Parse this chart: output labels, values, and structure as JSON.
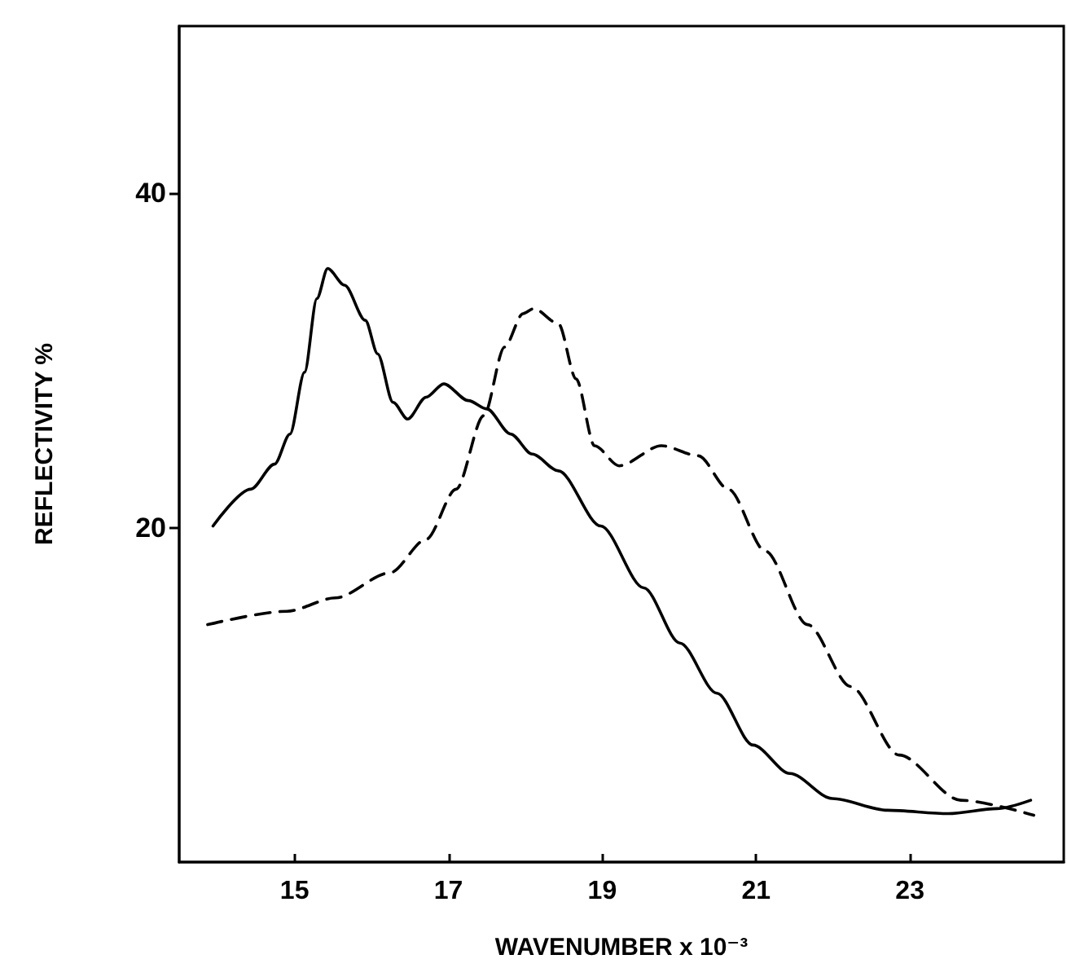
{
  "chart_data": {
    "type": "line",
    "xlabel": "WAVENUMBER x 10⁻³",
    "ylabel": "REFLECTIVITY %",
    "xlim": [
      13.5,
      25
    ],
    "ylim": [
      0,
      50
    ],
    "xticks": [
      15,
      17,
      19,
      21,
      23
    ],
    "yticks": [
      20,
      40
    ],
    "grid": false,
    "marker": "none",
    "series": [
      {
        "color": "#000000",
        "line_style": "solid",
        "x": [
          13.94,
          14.43,
          14.74,
          14.94,
          15.13,
          15.29,
          15.43,
          15.65,
          15.92,
          16.08,
          16.28,
          16.47,
          16.71,
          16.94,
          17.26,
          17.5,
          17.81,
          18.09,
          18.43,
          18.98,
          19.54,
          20.01,
          20.49,
          20.96,
          21.44,
          21.99,
          22.71,
          23.5,
          24.13,
          24.57
        ],
        "values": [
          20.1,
          22.3,
          23.8,
          25.6,
          29.3,
          33.7,
          35.5,
          34.5,
          32.4,
          30.4,
          27.5,
          26.5,
          27.8,
          28.6,
          27.6,
          27.1,
          25.6,
          24.4,
          23.4,
          20.1,
          16.4,
          13.1,
          10.1,
          7.0,
          5.3,
          3.8,
          3.1,
          2.9,
          3.2,
          3.7
        ]
      },
      {
        "color": "#000000",
        "line_style": "dashed",
        "x": [
          13.87,
          14.9,
          15.53,
          16.24,
          16.71,
          17.1,
          17.46,
          17.73,
          17.97,
          18.11,
          18.43,
          18.66,
          18.9,
          19.22,
          19.77,
          20.25,
          20.64,
          21.12,
          21.67,
          22.23,
          22.86,
          23.66,
          24.61
        ],
        "values": [
          14.2,
          15.0,
          15.8,
          17.3,
          19.3,
          22.3,
          26.7,
          30.8,
          32.8,
          33.1,
          32.2,
          28.9,
          24.9,
          23.7,
          24.9,
          24.3,
          22.3,
          18.6,
          14.2,
          10.5,
          6.4,
          3.7,
          2.8
        ]
      }
    ]
  }
}
